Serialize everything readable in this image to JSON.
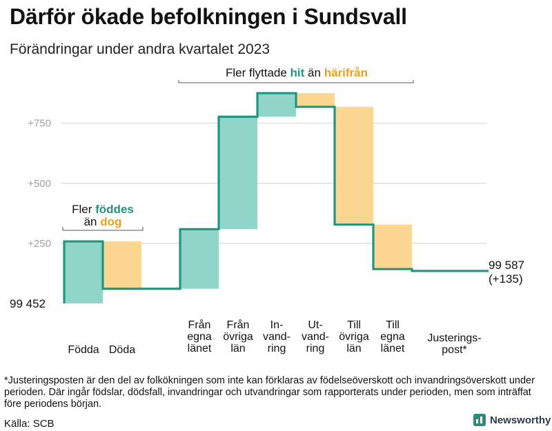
{
  "title": "Därför ökade befolkningen i Sundsvall",
  "subtitle": "Förändringar under andra kvartalet 2023",
  "colors": {
    "increase": "#8fd5c9",
    "decrease": "#fcd792",
    "line": "#219580",
    "hit": "#219580",
    "harifran": "#f0a020",
    "grid": "#d9d9d9",
    "tick": "#a0a0a0"
  },
  "chart_data": {
    "type": "waterfall",
    "start_value": 99452,
    "start_label": "99  452",
    "end_label_value": "99 587",
    "end_label_change": "(+135)",
    "y_ticks": [
      {
        "value": 250,
        "label": "+250"
      },
      {
        "value": 500,
        "label": "+500"
      },
      {
        "value": 750,
        "label": "+750"
      }
    ],
    "ylim": [
      0,
      900
    ],
    "steps": [
      {
        "lines": [
          "Födda"
        ],
        "change": 258,
        "kind": "increase"
      },
      {
        "lines": [
          "Döda"
        ],
        "change": -197,
        "kind": "decrease"
      },
      {
        "lines": [
          "Från",
          "egna",
          "länet"
        ],
        "change": 248,
        "kind": "increase"
      },
      {
        "lines": [
          "Från",
          "övriga",
          "län"
        ],
        "change": 468,
        "kind": "increase"
      },
      {
        "lines": [
          "In-",
          "vand-",
          "ring"
        ],
        "change": 98,
        "kind": "increase"
      },
      {
        "lines": [
          "Ut-",
          "vand-",
          "ring"
        ],
        "change": -57,
        "kind": "decrease"
      },
      {
        "lines": [
          "Till",
          "övriga",
          "län"
        ],
        "change": -490,
        "kind": "decrease"
      },
      {
        "lines": [
          "Till",
          "egna",
          "länet"
        ],
        "change": -185,
        "kind": "decrease"
      },
      {
        "lines": [
          "Justerings-",
          "post*"
        ],
        "change": -8,
        "kind": "adjustment"
      }
    ],
    "annotations": {
      "births": {
        "line1": "Fler ",
        "hl1": "föddes",
        "line2": "än ",
        "hl2": "dog"
      },
      "migration": {
        "pre": "Fler flyttade ",
        "hl1": "hit",
        "mid": " än ",
        "hl2": "härifrån"
      }
    }
  },
  "footnote": "*Justeringsposten är den del av folkökningen som inte kan förklaras av födelseöverskott och invandringsöverskott under perioden. Där ingår födslar, dödsfall, invandringar och utvandringar som rapporterats under perioden, men som inträffat före periodens början.",
  "source": "Källa: SCB",
  "brand": "Newsworthy"
}
